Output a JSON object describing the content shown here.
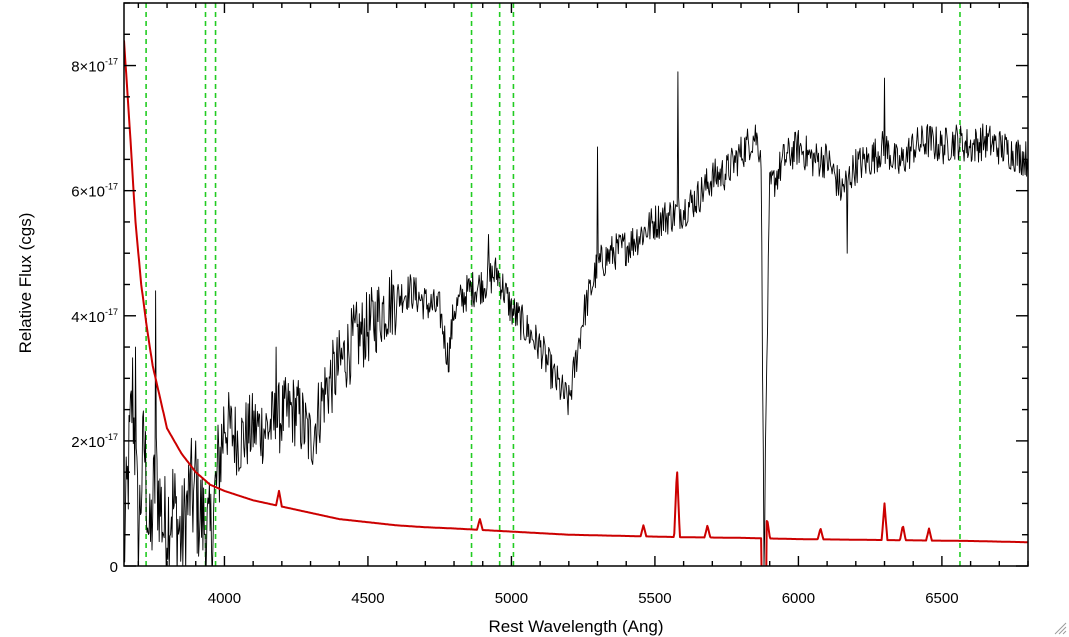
{
  "chart_data": {
    "type": "line",
    "title": "",
    "xlabel": "Rest Wavelength (Ang)",
    "ylabel": "Relative Flux (cgs)",
    "xlim": [
      3650,
      6800
    ],
    "ylim": [
      0,
      9e-17
    ],
    "grid": false,
    "x_ticks": [
      {
        "value": 4000,
        "label": "4000"
      },
      {
        "value": 4500,
        "label": "4500"
      },
      {
        "value": 5000,
        "label": "5000"
      },
      {
        "value": 5500,
        "label": "5500"
      },
      {
        "value": 6000,
        "label": "6000"
      },
      {
        "value": 6500,
        "label": "6500"
      }
    ],
    "y_ticks": [
      {
        "value": 0,
        "mant": "0",
        "exp": ""
      },
      {
        "value": 2e-17,
        "mant": "2×10",
        "exp": "-17"
      },
      {
        "value": 4e-17,
        "mant": "4×10",
        "exp": "-17"
      },
      {
        "value": 6e-17,
        "mant": "6×10",
        "exp": "-17"
      },
      {
        "value": 8e-17,
        "mant": "8×10",
        "exp": "-17"
      }
    ],
    "vlines": [
      3727,
      3934,
      3969,
      4861,
      4959,
      5007,
      6563
    ],
    "series": [
      {
        "color": "#000000",
        "points": [
          [
            3650,
            2e-18
          ],
          [
            3680,
            2.8e-17
          ],
          [
            3700,
            5e-18
          ],
          [
            3720,
            2e-17
          ],
          [
            3740,
            3e-18
          ],
          [
            3760,
            1.5e-17
          ],
          [
            3790,
            6e-18
          ],
          [
            3820,
            1e-17
          ],
          [
            3850,
            4e-18
          ],
          [
            3880,
            1.2e-17
          ],
          [
            3920,
            8e-18
          ],
          [
            3950,
            4e-18
          ],
          [
            3980,
            1.6e-17
          ],
          [
            4000,
            2.3e-17
          ],
          [
            4050,
            2e-17
          ],
          [
            4100,
            2.2e-17
          ],
          [
            4150,
            2.2e-17
          ],
          [
            4200,
            2.4e-17
          ],
          [
            4250,
            2.5e-17
          ],
          [
            4300,
            2e-17
          ],
          [
            4350,
            2.8e-17
          ],
          [
            4400,
            3.2e-17
          ],
          [
            4450,
            3.6e-17
          ],
          [
            4500,
            3.8e-17
          ],
          [
            4550,
            4.1e-17
          ],
          [
            4600,
            4.3e-17
          ],
          [
            4650,
            4.4e-17
          ],
          [
            4700,
            4.2e-17
          ],
          [
            4750,
            4.1e-17
          ],
          [
            4780,
            3.3e-17
          ],
          [
            4800,
            4.1e-17
          ],
          [
            4850,
            4.4e-17
          ],
          [
            4900,
            4.5e-17
          ],
          [
            4950,
            4.7e-17
          ],
          [
            5000,
            4.1e-17
          ],
          [
            5050,
            3.8e-17
          ],
          [
            5100,
            3.5e-17
          ],
          [
            5150,
            3e-17
          ],
          [
            5200,
            2.6e-17
          ],
          [
            5250,
            4e-17
          ],
          [
            5300,
            4.8e-17
          ],
          [
            5350,
            5e-17
          ],
          [
            5400,
            5.1e-17
          ],
          [
            5450,
            5.3e-17
          ],
          [
            5500,
            5.5e-17
          ],
          [
            5550,
            5.6e-17
          ],
          [
            5600,
            5.7e-17
          ],
          [
            5650,
            5.9e-17
          ],
          [
            5700,
            6.2e-17
          ],
          [
            5750,
            6.3e-17
          ],
          [
            5800,
            6.6e-17
          ],
          [
            5850,
            6.9e-17
          ],
          [
            5870,
            6.6e-17
          ],
          [
            5880,
            0.0
          ],
          [
            5890,
            3.3e-17
          ],
          [
            5900,
            6e-17
          ],
          [
            5950,
            6.5e-17
          ],
          [
            6000,
            6.7e-17
          ],
          [
            6050,
            6.5e-17
          ],
          [
            6100,
            6.5e-17
          ],
          [
            6150,
            6e-17
          ],
          [
            6200,
            6.4e-17
          ],
          [
            6250,
            6.5e-17
          ],
          [
            6300,
            6.7e-17
          ],
          [
            6350,
            6.4e-17
          ],
          [
            6400,
            6.7e-17
          ],
          [
            6450,
            6.8e-17
          ],
          [
            6500,
            6.7e-17
          ],
          [
            6550,
            6.8e-17
          ],
          [
            6600,
            6.7e-17
          ],
          [
            6650,
            6.8e-17
          ],
          [
            6700,
            6.7e-17
          ],
          [
            6750,
            6.6e-17
          ],
          [
            6800,
            6.5e-17
          ]
        ],
        "noise": [
          9e-18,
          6e-18,
          3e-18
        ],
        "spikes": [
          [
            3690,
            3.5e-17
          ],
          [
            3760,
            4.4e-17
          ],
          [
            3900,
            2e-17
          ],
          [
            4180,
            3.5e-17
          ],
          [
            4920,
            5.3e-17
          ],
          [
            5300,
            6.7e-17
          ],
          [
            5580,
            7.9e-17
          ],
          [
            5880,
            0.0
          ],
          [
            6170,
            5e-17
          ],
          [
            6300,
            7.8e-17
          ]
        ]
      },
      {
        "color": "#cc0000",
        "points": [
          [
            3650,
            8.4e-17
          ],
          [
            3670,
            7e-17
          ],
          [
            3690,
            5.5e-17
          ],
          [
            3710,
            4.5e-17
          ],
          [
            3730,
            3.8e-17
          ],
          [
            3750,
            3.2e-17
          ],
          [
            3780,
            2.6e-17
          ],
          [
            3800,
            2.2e-17
          ],
          [
            3850,
            1.8e-17
          ],
          [
            3900,
            1.5e-17
          ],
          [
            3950,
            1.3e-17
          ],
          [
            4000,
            1.2e-17
          ],
          [
            4100,
            1.05e-17
          ],
          [
            4200,
            9.5e-18
          ],
          [
            4300,
            8.5e-18
          ],
          [
            4400,
            7.5e-18
          ],
          [
            4500,
            7e-18
          ],
          [
            4600,
            6.5e-18
          ],
          [
            4700,
            6.2e-18
          ],
          [
            4800,
            6e-18
          ],
          [
            5000,
            5.5e-18
          ],
          [
            5200,
            5e-18
          ],
          [
            5400,
            4.8e-18
          ],
          [
            5600,
            4.6e-18
          ],
          [
            5800,
            4.5e-18
          ],
          [
            6000,
            4.3e-18
          ],
          [
            6200,
            4.2e-18
          ],
          [
            6400,
            4.1e-18
          ],
          [
            6600,
            4e-18
          ],
          [
            6800,
            3.8e-18
          ]
        ],
        "bumps": [
          [
            4190,
            1.2e-17
          ],
          [
            4890,
            7.5e-18
          ],
          [
            5460,
            6.5e-18
          ],
          [
            5577,
            1.55e-17
          ],
          [
            5683,
            6.5e-18
          ],
          [
            5891,
            7.5e-18
          ],
          [
            6077,
            6e-18
          ],
          [
            6300,
            1e-17
          ],
          [
            6364,
            6.5e-18
          ],
          [
            6455,
            6e-18
          ]
        ],
        "dips": [
          5880
        ]
      }
    ]
  }
}
